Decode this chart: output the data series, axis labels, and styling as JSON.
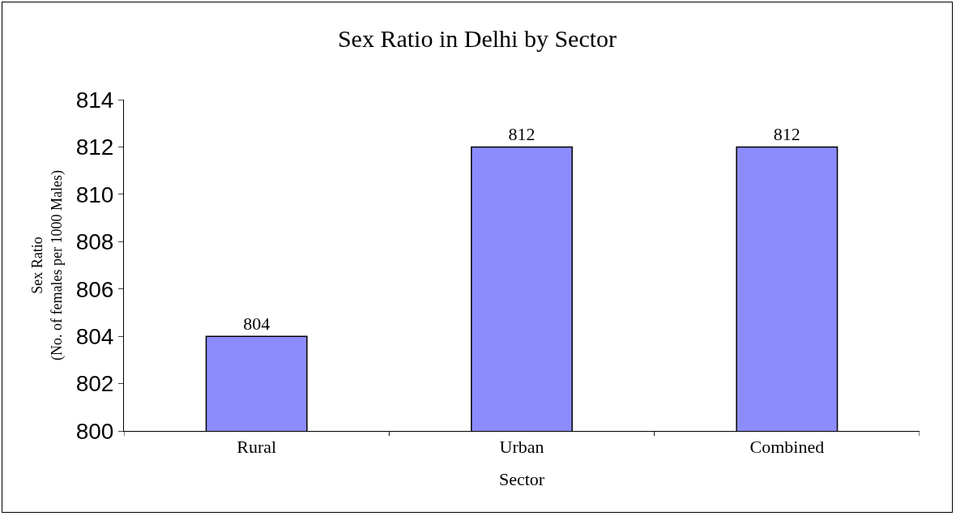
{
  "chart_data": {
    "type": "bar",
    "title": "Sex Ratio in Delhi by Sector",
    "xlabel": "Sector",
    "ylabel": "Sex Ratio\n(No. of females per 1000 Males)",
    "categories": [
      "Rural",
      "Urban",
      "Combined"
    ],
    "values": [
      804,
      812,
      812
    ],
    "color": "#8c8cff",
    "ylim": [
      800,
      814
    ],
    "yticks": [
      800,
      802,
      804,
      806,
      808,
      810,
      812,
      814
    ],
    "grid": false,
    "data_labels": true
  }
}
